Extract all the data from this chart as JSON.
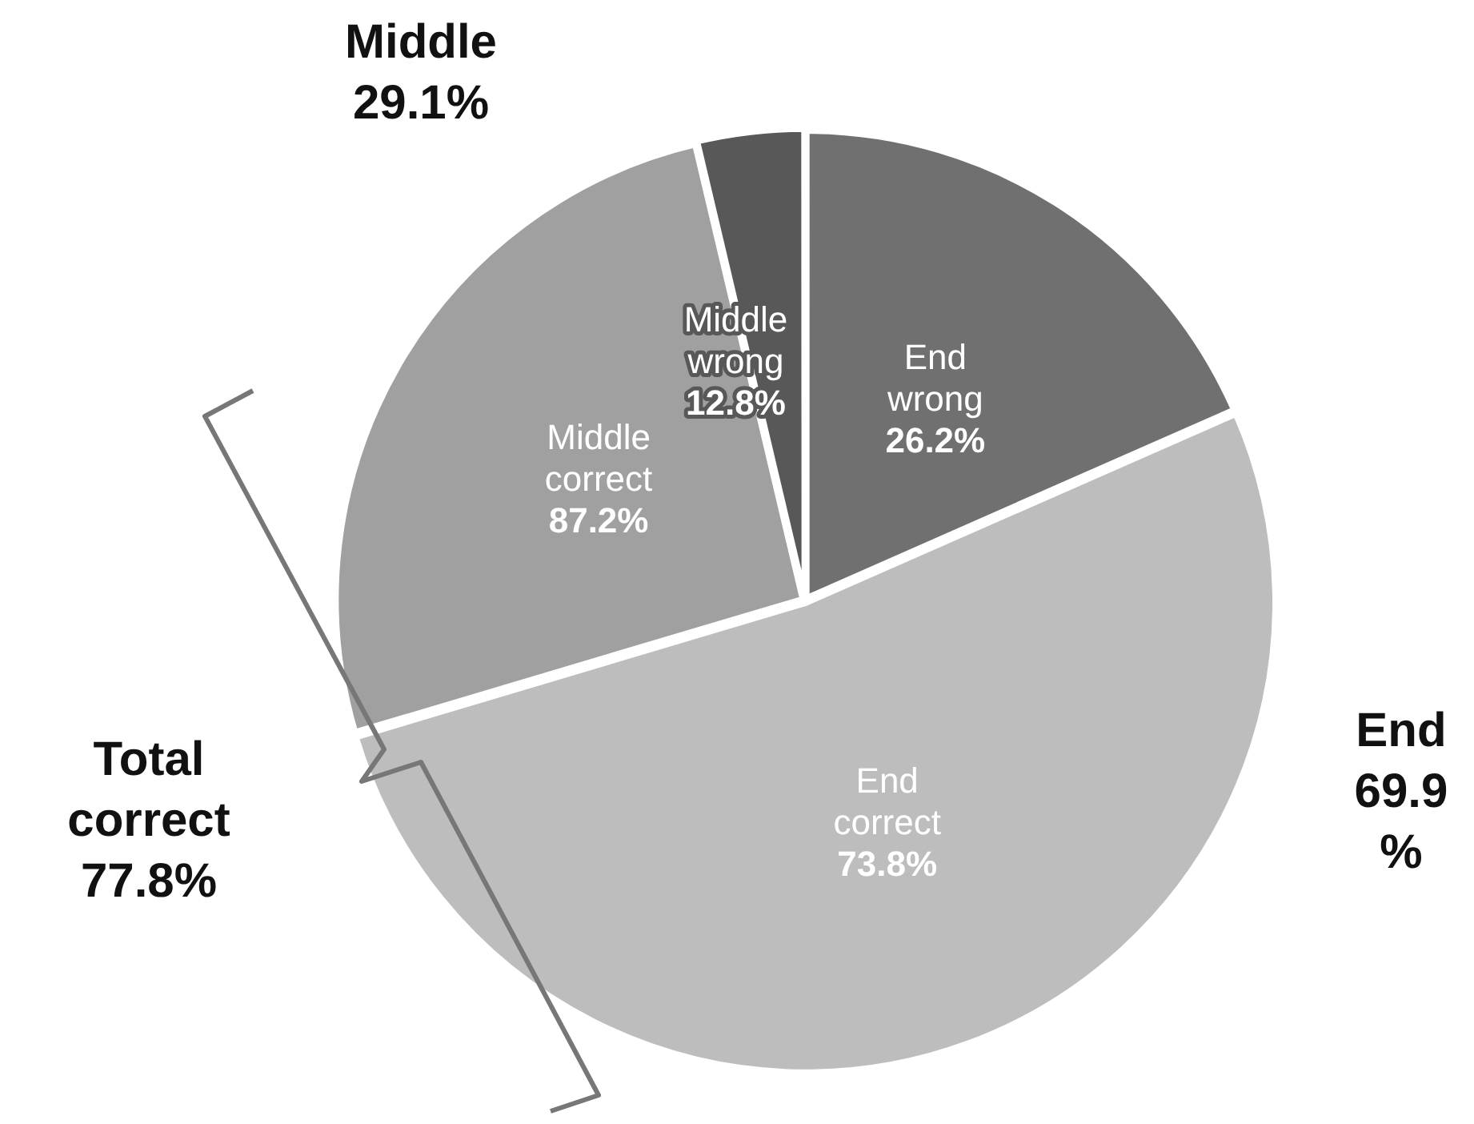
{
  "chart_data": {
    "type": "pie",
    "categories": [
      "End wrong 26.2%",
      "End correct 73.8%",
      "Middle correct 87.2%",
      "Middle wrong 12.8%"
    ],
    "values": [
      18.4,
      52.0,
      25.9,
      3.7
    ],
    "colors": [
      "#707070",
      "#bdbdbd",
      "#a0a0a0",
      "#585858"
    ],
    "annotations": [
      "Middle 29.1%",
      "End 69.9 %",
      "Total correct 77.8%"
    ],
    "legend": false
  }
}
